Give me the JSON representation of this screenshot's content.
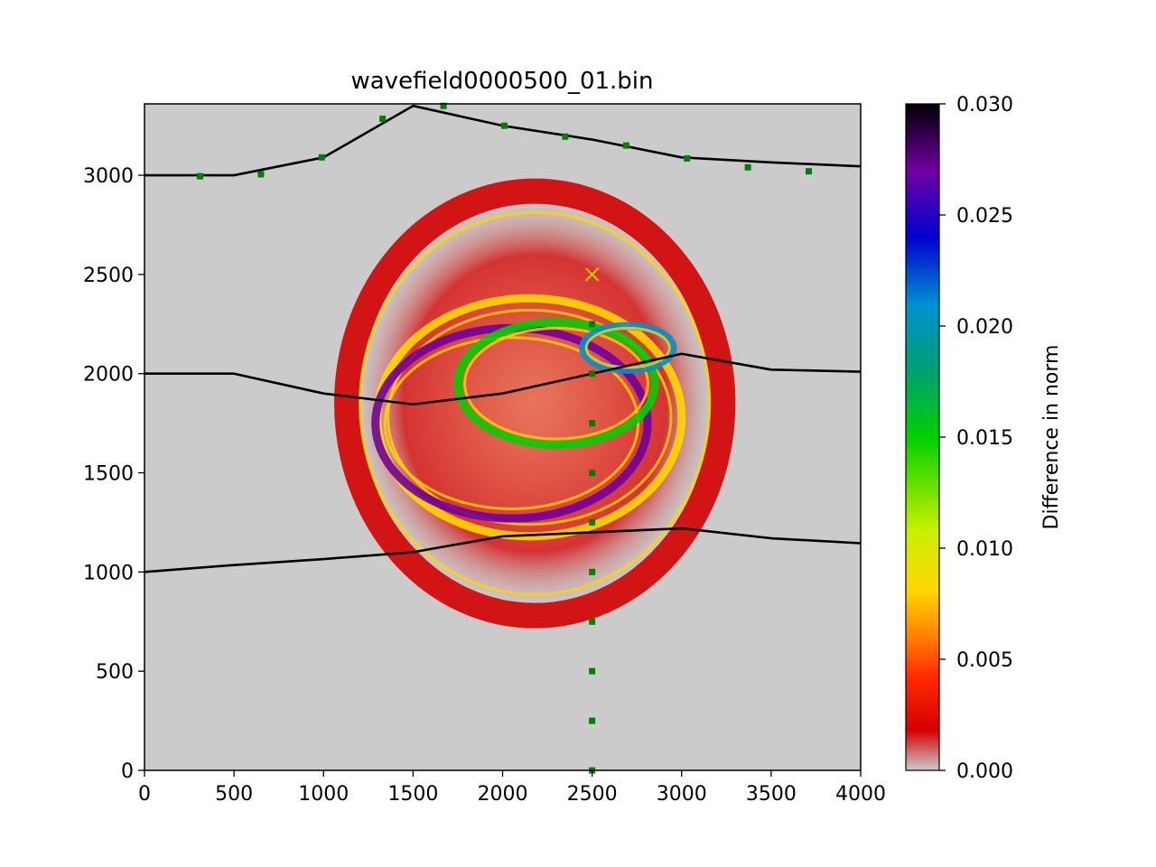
{
  "chart_data": {
    "type": "heatmap",
    "title": "wavefield0000500_01.bin",
    "xlabel": "",
    "ylabel": "",
    "xlim": [
      0,
      4000
    ],
    "ylim": [
      0,
      3360
    ],
    "x_ticks": [
      "0",
      "500",
      "1000",
      "1500",
      "2000",
      "2500",
      "3000",
      "3500",
      "4000"
    ],
    "y_ticks": [
      "0",
      "500",
      "1000",
      "1500",
      "2000",
      "2500",
      "3000"
    ],
    "background_color": "#cbcbcb",
    "colorbar": {
      "label": "Difference in norm",
      "range": [
        0.0,
        0.03
      ],
      "ticks": [
        "0.000",
        "0.005",
        "0.010",
        "0.015",
        "0.020",
        "0.025",
        "0.030"
      ],
      "colormap": [
        "#cbcbcb",
        "#d40000",
        "#ff2a00",
        "#ff8000",
        "#ffd700",
        "#c8f000",
        "#00d000",
        "#00a070",
        "#0090d0",
        "#0000d0",
        "#7000a0",
        "#000000"
      ]
    },
    "layer_interfaces": [
      {
        "x": [
          0,
          500,
          1000,
          1500,
          2000,
          2500,
          3000,
          3500,
          4000
        ],
        "y": [
          3000,
          3000,
          3090,
          3350,
          3250,
          3180,
          3090,
          3065,
          3045
        ]
      },
      {
        "x": [
          0,
          500,
          1000,
          1500,
          2000,
          2500,
          3000,
          3500,
          4000
        ],
        "y": [
          2000,
          2000,
          1900,
          1845,
          1900,
          2000,
          2100,
          2020,
          2010
        ]
      },
      {
        "x": [
          0,
          500,
          1000,
          1500,
          2000,
          2500,
          3000,
          3500,
          4000
        ],
        "y": [
          1000,
          1035,
          1065,
          1100,
          1180,
          1200,
          1220,
          1170,
          1145
        ]
      }
    ],
    "surface_receivers": {
      "color": "#008000",
      "x": [
        310,
        650,
        990,
        1330,
        1670,
        2010,
        2350,
        2690,
        3030,
        3370,
        3710
      ],
      "y": [
        2995,
        3005,
        3090,
        3285,
        3350,
        3250,
        3195,
        3150,
        3085,
        3040,
        3020
      ]
    },
    "borehole_receivers": {
      "color": "#008000",
      "x": [
        2500,
        2500,
        2500,
        2500,
        2500,
        2500,
        2500,
        2500,
        2500,
        2500,
        2500
      ],
      "y": [
        0,
        250,
        500,
        750,
        1000,
        1250,
        1500,
        1750,
        2000,
        2250,
        2500
      ]
    },
    "source": {
      "x": 2500,
      "y": 2500,
      "marker": "x",
      "color": "#ffa500"
    },
    "wavefronts": [
      {
        "cx": 2180,
        "cy": 1850,
        "rx": 1050,
        "ry": 1070,
        "level": 0.004
      },
      {
        "cx": 2150,
        "cy": 1780,
        "rx": 850,
        "ry": 600,
        "level": 0.012
      },
      {
        "cx": 2050,
        "cy": 1750,
        "rx": 760,
        "ry": 480,
        "level": 0.026
      },
      {
        "cx": 2300,
        "cy": 1950,
        "rx": 550,
        "ry": 310,
        "level": 0.017
      },
      {
        "cx": 2700,
        "cy": 2130,
        "rx": 250,
        "ry": 110,
        "level": 0.022
      }
    ]
  }
}
